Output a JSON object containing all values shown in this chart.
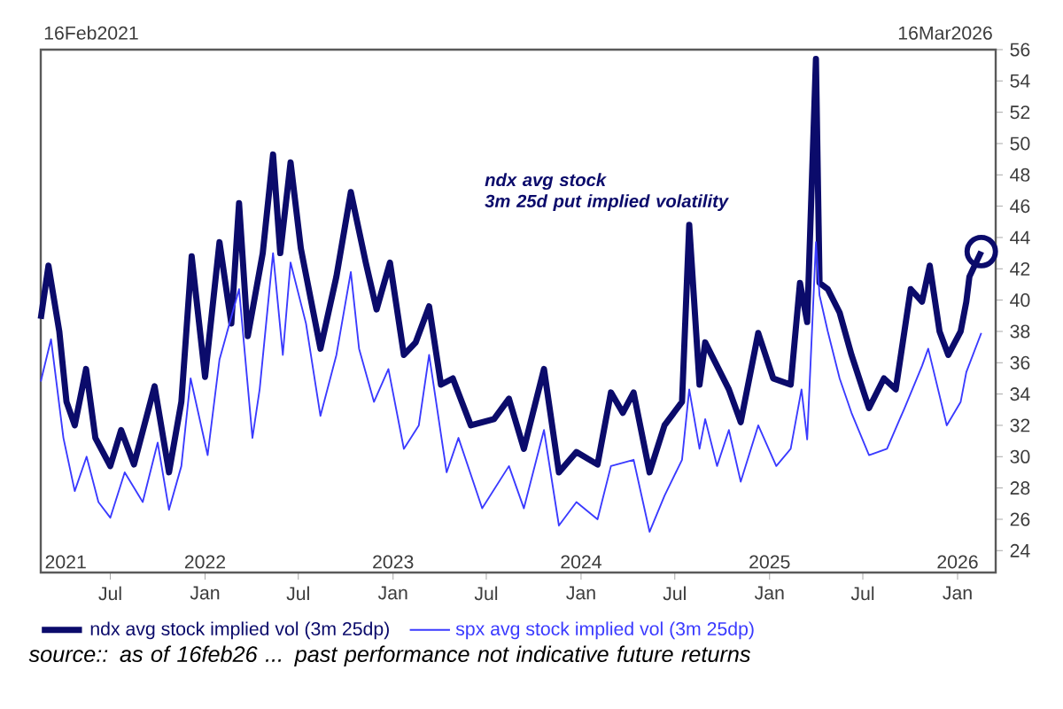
{
  "chart_data": {
    "type": "line",
    "xlim": [
      "2021-02-16",
      "2026-03-16"
    ],
    "ylim": [
      22.6,
      56
    ],
    "yticks": [
      24,
      26,
      28,
      30,
      32,
      34,
      36,
      38,
      40,
      42,
      44,
      46,
      48,
      50,
      52,
      54,
      56
    ],
    "xticks": [
      {
        "value": "2021-07-01",
        "label": "Jul"
      },
      {
        "value": "2022-01-01",
        "label": "Jan"
      },
      {
        "value": "2022-07-01",
        "label": "Jul"
      },
      {
        "value": "2023-01-01",
        "label": "Jan"
      },
      {
        "value": "2023-07-01",
        "label": "Jul"
      },
      {
        "value": "2024-01-01",
        "label": "Jan"
      },
      {
        "value": "2024-07-01",
        "label": "Jul"
      },
      {
        "value": "2025-01-01",
        "label": "Jan"
      },
      {
        "value": "2025-07-01",
        "label": "Jul"
      },
      {
        "value": "2026-01-01",
        "label": "Jan"
      }
    ],
    "x2lim": [
      "2021-02-16",
      "2026-03-16"
    ],
    "x2ticks": [
      {
        "value": "2021-02-16",
        "label": "2021"
      },
      {
        "value": "2022-01-01",
        "label": "2022"
      },
      {
        "value": "2023-01-01",
        "label": "2023"
      },
      {
        "value": "2024-01-01",
        "label": "2024"
      },
      {
        "value": "2025-01-01",
        "label": "2025"
      },
      {
        "value": "2026-01-01",
        "label": "2026"
      }
    ],
    "legend": "bottom",
    "series": [
      {
        "name": "ndx avg stock implied vol (3m 25dp)",
        "color": "#0b0b6b",
        "x": [
          "2021-02-16",
          "2021-03-03",
          "2021-03-24",
          "2021-04-07",
          "2021-04-23",
          "2021-05-15",
          "2021-06-02",
          "2021-07-01",
          "2021-07-22",
          "2021-08-16",
          "2021-09-25",
          "2021-10-23",
          "2021-11-16",
          "2021-12-06",
          "2022-01-01",
          "2022-01-29",
          "2022-02-21",
          "2022-03-08",
          "2022-03-25",
          "2022-04-23",
          "2022-05-13",
          "2022-05-27",
          "2022-06-16",
          "2022-07-06",
          "2022-08-13",
          "2022-09-13",
          "2022-10-11",
          "2022-11-09",
          "2022-11-30",
          "2022-12-26",
          "2023-01-22",
          "2023-02-14",
          "2023-03-12",
          "2023-04-04",
          "2023-04-27",
          "2023-06-01",
          "2023-07-16",
          "2023-08-14",
          "2023-09-12",
          "2023-10-21",
          "2023-11-19",
          "2023-12-23",
          "2024-02-02",
          "2024-02-28",
          "2024-03-22",
          "2024-04-12",
          "2024-05-13",
          "2024-06-11",
          "2024-07-15",
          "2024-07-29",
          "2024-08-18",
          "2024-08-29",
          "2024-09-21",
          "2024-10-14",
          "2024-11-06",
          "2024-12-10",
          "2025-01-08",
          "2025-02-11",
          "2025-03-01",
          "2025-03-15",
          "2025-04-01",
          "2025-04-08",
          "2025-04-24",
          "2025-05-17",
          "2025-06-09",
          "2025-07-13",
          "2025-08-11",
          "2025-09-03",
          "2025-10-02",
          "2025-10-24",
          "2025-11-08",
          "2025-11-27",
          "2025-12-14",
          "2026-01-07",
          "2026-01-18",
          "2026-01-24",
          "2026-02-16"
        ],
        "values": [
          38.8,
          42.2,
          38.0,
          33.5,
          32.0,
          35.6,
          31.2,
          29.4,
          31.7,
          29.5,
          34.5,
          29.0,
          33.5,
          42.8,
          35.1,
          43.7,
          38.5,
          46.2,
          37.7,
          43.0,
          49.3,
          43.0,
          48.8,
          43.3,
          36.9,
          41.5,
          46.9,
          42.4,
          39.4,
          42.4,
          36.5,
          37.3,
          39.6,
          34.6,
          35.0,
          32.0,
          32.4,
          33.7,
          30.5,
          35.6,
          29.0,
          30.3,
          29.5,
          34.1,
          32.8,
          34.1,
          29.0,
          32.0,
          33.5,
          44.8,
          34.6,
          37.3,
          35.8,
          34.3,
          32.2,
          37.9,
          35.0,
          34.6,
          41.1,
          38.6,
          55.4,
          41.1,
          40.7,
          39.2,
          36.5,
          33.1,
          35.0,
          34.3,
          40.7,
          39.9,
          42.2,
          38.0,
          36.5,
          38.0,
          39.9,
          41.5,
          43.1
        ]
      },
      {
        "name": "spx avg stock implied vol (3m 25dp)",
        "color": "#3a3aff",
        "x": [
          "2021-02-16",
          "2021-03-08",
          "2021-04-01",
          "2021-04-23",
          "2021-05-16",
          "2021-06-08",
          "2021-07-01",
          "2021-07-29",
          "2021-09-02",
          "2021-10-01",
          "2021-10-23",
          "2021-11-16",
          "2021-12-04",
          "2022-01-06",
          "2022-01-29",
          "2022-03-08",
          "2022-04-03",
          "2022-04-17",
          "2022-05-13",
          "2022-06-01",
          "2022-06-16",
          "2022-07-16",
          "2022-08-13",
          "2022-09-13",
          "2022-10-11",
          "2022-10-27",
          "2022-11-25",
          "2022-12-23",
          "2023-01-22",
          "2023-02-20",
          "2023-03-12",
          "2023-04-15",
          "2023-05-08",
          "2023-06-23",
          "2023-08-14",
          "2023-09-12",
          "2023-10-21",
          "2023-11-19",
          "2023-12-23",
          "2024-02-02",
          "2024-02-28",
          "2024-04-12",
          "2024-05-13",
          "2024-06-11",
          "2024-07-15",
          "2024-07-29",
          "2024-08-18",
          "2024-08-29",
          "2024-09-21",
          "2024-10-14",
          "2024-11-06",
          "2024-12-10",
          "2025-01-14",
          "2025-02-11",
          "2025-03-04",
          "2025-03-15",
          "2025-04-01",
          "2025-04-08",
          "2025-04-24",
          "2025-05-17",
          "2025-06-09",
          "2025-07-13",
          "2025-08-17",
          "2025-09-20",
          "2025-10-24",
          "2025-11-05",
          "2025-12-11",
          "2026-01-07",
          "2026-01-18",
          "2026-02-16"
        ],
        "values": [
          34.8,
          37.5,
          31.2,
          27.8,
          30.0,
          27.1,
          26.1,
          29.0,
          27.1,
          30.9,
          26.6,
          29.4,
          35.0,
          30.1,
          36.2,
          40.7,
          31.2,
          34.3,
          43.0,
          36.5,
          42.4,
          38.5,
          32.6,
          36.5,
          41.8,
          36.9,
          33.5,
          35.6,
          30.5,
          32.0,
          36.5,
          29.0,
          31.2,
          26.7,
          29.4,
          26.7,
          31.7,
          25.6,
          27.1,
          26.0,
          29.4,
          29.8,
          25.2,
          27.5,
          29.8,
          34.3,
          30.5,
          32.4,
          29.4,
          31.7,
          28.4,
          32.0,
          29.4,
          30.5,
          34.3,
          31.1,
          43.7,
          40.3,
          38.0,
          35.0,
          32.8,
          30.1,
          30.5,
          33.1,
          35.8,
          36.9,
          32.0,
          33.5,
          35.4,
          37.9
        ]
      }
    ],
    "annotations": [
      "ndx avg stock 3m 25d put implied volatility",
      "16Feb2021",
      "16Mar2026",
      "source:: as of 16feb26 ... past performance not indicative future returns"
    ]
  }
}
